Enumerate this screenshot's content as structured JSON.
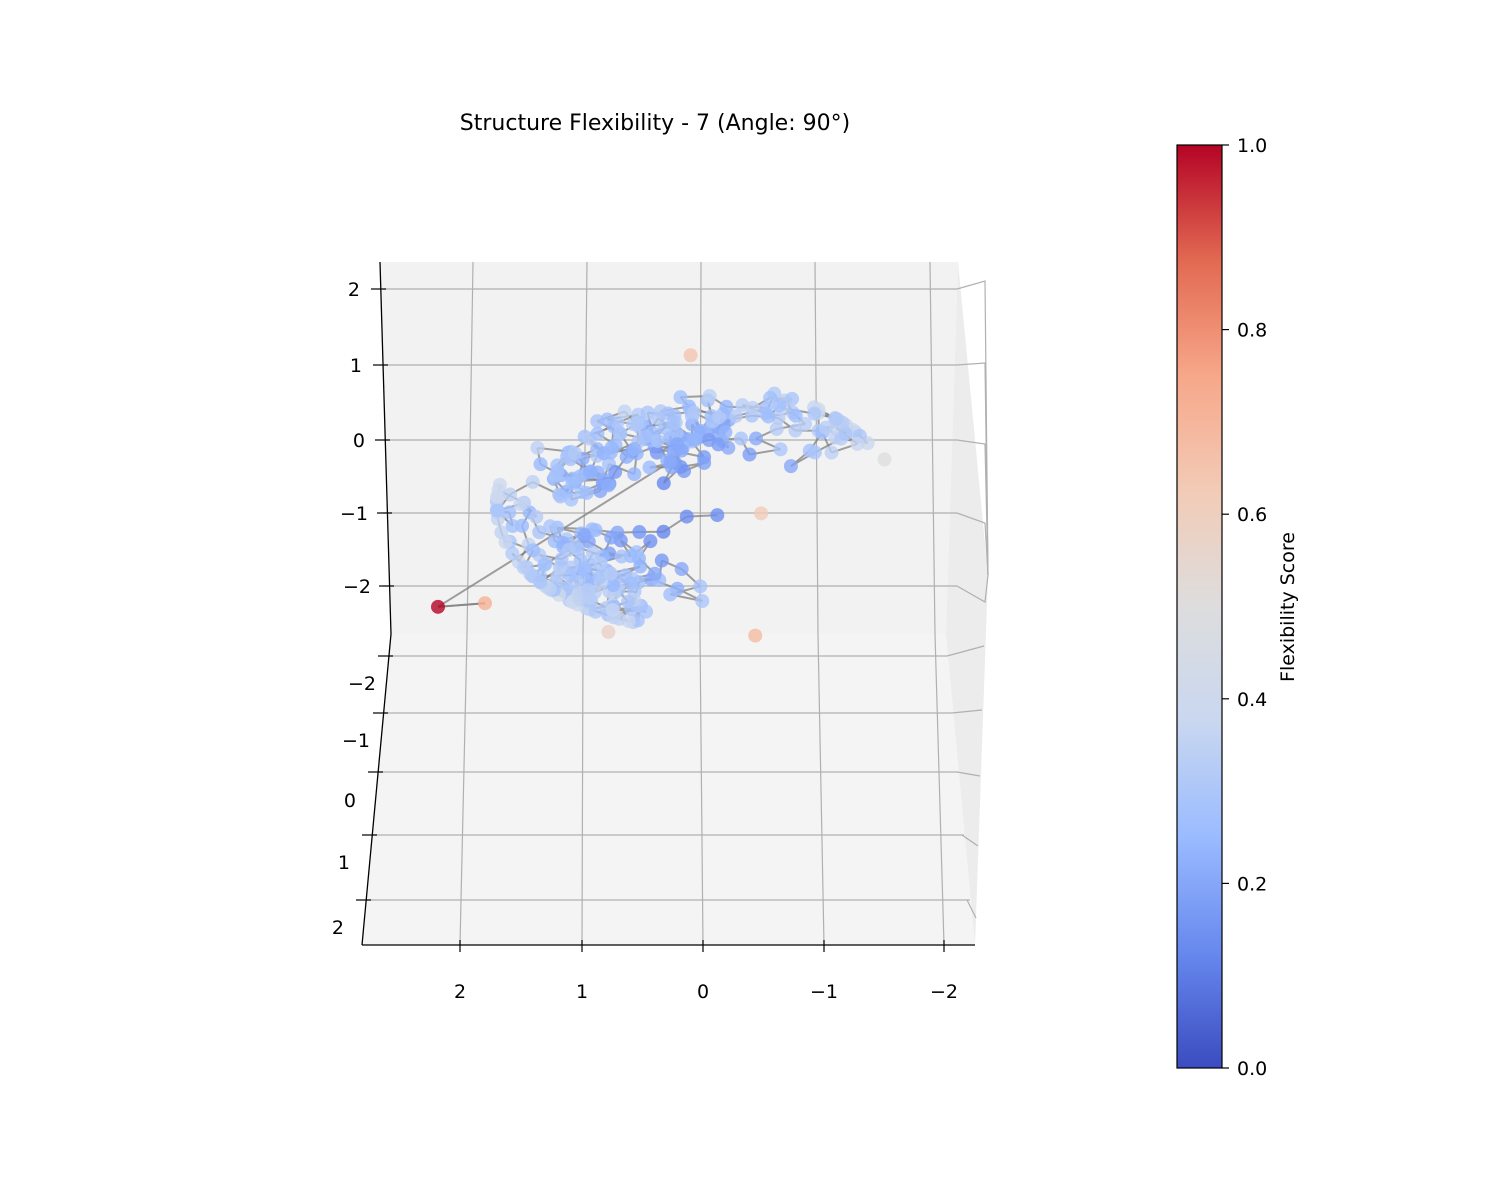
{
  "chart_data": {
    "type": "scatter",
    "projection": "3d",
    "title": "Structure Flexibility - 7 (Angle: 90°)",
    "xlabel": "",
    "ylabel": "",
    "zlabel": "",
    "x_ticks": [
      "2",
      "1",
      "0",
      "−1",
      "−2"
    ],
    "y_ticks": [
      "−2",
      "−1",
      "0",
      "1",
      "2"
    ],
    "z_ticks": [
      "2",
      "1",
      "0",
      "−1",
      "−2"
    ],
    "xlim": [
      2.6,
      -2.2
    ],
    "ylim": [
      -2.5,
      2.5
    ],
    "zlim": [
      -2.4,
      2.4
    ],
    "grid": true,
    "colormap": "coolwarm",
    "bond_color": "#808080",
    "marker": "circle",
    "colorbar": {
      "label": "Flexibility Score",
      "min": 0.0,
      "max": 1.0,
      "ticks": [
        "0.0",
        "0.2",
        "0.4",
        "0.6",
        "0.8",
        "1.0"
      ],
      "stops": [
        "#3b4cc0",
        "#6788ee",
        "#9abbff",
        "#c9d7f0",
        "#dddddd",
        "#f2cbb7",
        "#f7a789",
        "#e26952",
        "#b40426"
      ]
    },
    "points_count": 330,
    "notable_points": [
      {
        "x": 2.2,
        "z": -2.3,
        "flexibility": 1.0
      },
      {
        "x": 1.8,
        "z": -2.25,
        "flexibility": 0.72
      },
      {
        "x": -0.55,
        "z": -1.0,
        "flexibility": 0.62
      },
      {
        "x": 0.05,
        "z": 1.2,
        "flexibility": 0.65
      },
      {
        "x": -0.5,
        "z": -2.7,
        "flexibility": 0.68
      },
      {
        "x": 0.75,
        "z": -2.65,
        "flexibility": 0.58
      },
      {
        "x": -1.6,
        "z": -0.25,
        "flexibility": 0.5
      }
    ]
  }
}
